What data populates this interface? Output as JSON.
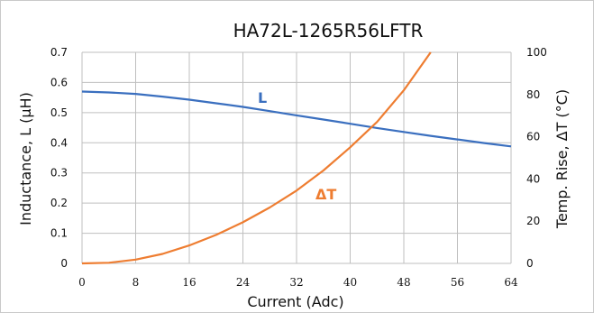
{
  "chart_data": {
    "type": "line",
    "title": "HA72L-1265R56LFTR",
    "xlabel": "Current (Adc)",
    "ylabel_left": "Inductance, L (µH)",
    "ylabel_right": "Temp. Rise, ΔT (°C)",
    "xlim": [
      0,
      64
    ],
    "ylim_left": [
      0,
      0.7
    ],
    "ylim_right": [
      0,
      100
    ],
    "x_ticks": [
      "0",
      "8",
      "16",
      "24",
      "32",
      "40",
      "48",
      "56",
      "64"
    ],
    "y_left_ticks": [
      "0",
      "0.1",
      "0.2",
      "0.3",
      "0.4",
      "0.5",
      "0.6",
      "0.7"
    ],
    "y_right_ticks": [
      "0",
      "20",
      "40",
      "60",
      "80",
      "100"
    ],
    "grid": true,
    "series": [
      {
        "name": "L",
        "axis": "left",
        "color": "#3a6fbf",
        "x": [
          0,
          4,
          8,
          12,
          16,
          20,
          24,
          28,
          32,
          36,
          40,
          44,
          48,
          52,
          56,
          60,
          64
        ],
        "y": [
          0.57,
          0.567,
          0.562,
          0.553,
          0.543,
          0.531,
          0.519,
          0.505,
          0.491,
          0.477,
          0.463,
          0.449,
          0.436,
          0.423,
          0.411,
          0.399,
          0.388
        ]
      },
      {
        "name": "ΔT",
        "axis": "right",
        "color": "#ee7d31",
        "x": [
          0,
          4,
          8,
          12,
          16,
          20,
          24,
          28,
          32,
          36,
          40,
          44,
          48,
          52
        ],
        "y": [
          0,
          0.3,
          1.8,
          4.5,
          8.5,
          13.5,
          19.5,
          26.5,
          34.5,
          44,
          55,
          67,
          82,
          100
        ]
      }
    ]
  }
}
